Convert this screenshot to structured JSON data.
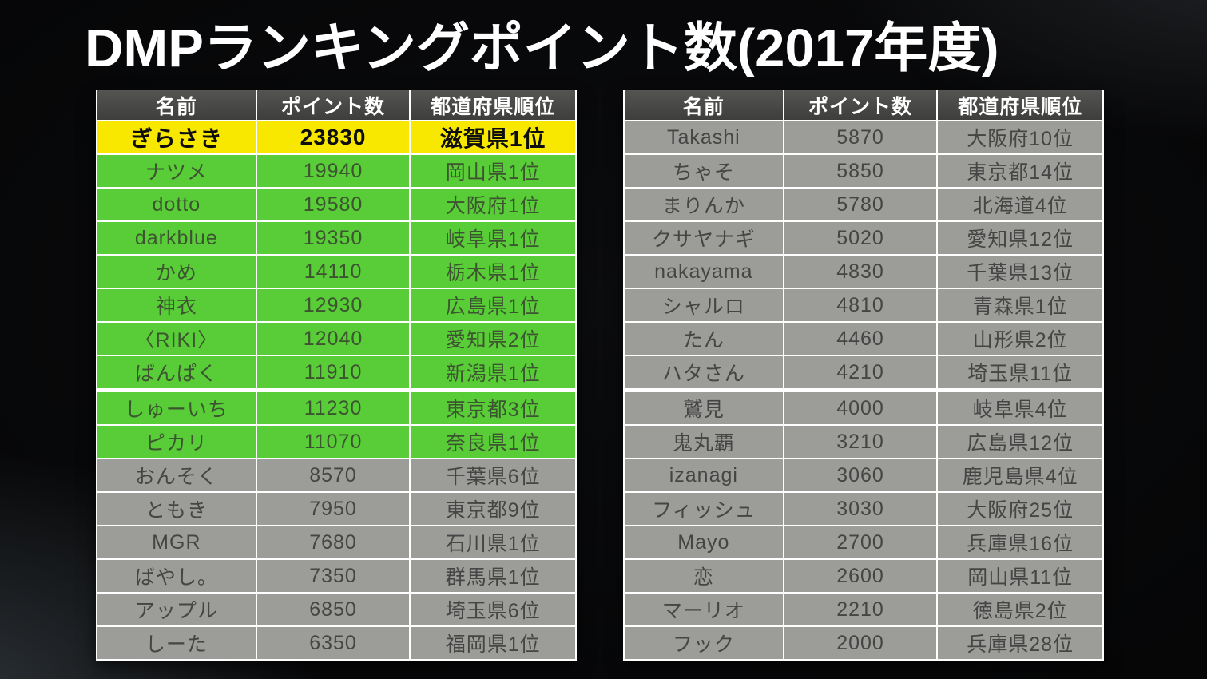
{
  "title": "DMPランキングポイント数(2017年度)",
  "colors": {
    "background": "#050506",
    "title_text": "#ffffff",
    "header_bg": "#474745",
    "grid_line": "#ffffff",
    "highlight_gold": "#f8e800",
    "highlight_green": "#58cd37",
    "row_gray": "#9c9c98"
  },
  "tables": {
    "columns": [
      "名前",
      "ポイント数",
      "都道府県順位"
    ],
    "left": {
      "thick_divider_before_row": 8,
      "rows": [
        {
          "name": "ぎらさき",
          "points": "23830",
          "pref": "滋賀県1位",
          "style": "gold"
        },
        {
          "name": "ナツメ",
          "points": "19940",
          "pref": "岡山県1位",
          "style": "green"
        },
        {
          "name": "dotto",
          "points": "19580",
          "pref": "大阪府1位",
          "style": "green"
        },
        {
          "name": "darkblue",
          "points": "19350",
          "pref": "岐阜県1位",
          "style": "green"
        },
        {
          "name": "かめ",
          "points": "14110",
          "pref": "栃木県1位",
          "style": "green"
        },
        {
          "name": "神衣",
          "points": "12930",
          "pref": "広島県1位",
          "style": "green"
        },
        {
          "name": "〈RIKI〉",
          "points": "12040",
          "pref": "愛知県2位",
          "style": "green"
        },
        {
          "name": "ばんぱく",
          "points": "11910",
          "pref": "新潟県1位",
          "style": "green"
        },
        {
          "name": "しゅーいち",
          "points": "11230",
          "pref": "東京都3位",
          "style": "green"
        },
        {
          "name": "ピカリ",
          "points": "11070",
          "pref": "奈良県1位",
          "style": "green"
        },
        {
          "name": "おんそく",
          "points": "8570",
          "pref": "千葉県6位",
          "style": "gray"
        },
        {
          "name": "ともき",
          "points": "7950",
          "pref": "東京都9位",
          "style": "gray"
        },
        {
          "name": "MGR",
          "points": "7680",
          "pref": "石川県1位",
          "style": "gray"
        },
        {
          "name": "ばやし。",
          "points": "7350",
          "pref": "群馬県1位",
          "style": "gray"
        },
        {
          "name": "アップル",
          "points": "6850",
          "pref": "埼玉県6位",
          "style": "gray"
        },
        {
          "name": "しーた",
          "points": "6350",
          "pref": "福岡県1位",
          "style": "gray"
        }
      ]
    },
    "right": {
      "thick_divider_before_row": 8,
      "rows": [
        {
          "name": "Takashi",
          "points": "5870",
          "pref": "大阪府10位",
          "style": "gray"
        },
        {
          "name": "ちゃそ",
          "points": "5850",
          "pref": "東京都14位",
          "style": "gray"
        },
        {
          "name": "まりんか",
          "points": "5780",
          "pref": "北海道4位",
          "style": "gray"
        },
        {
          "name": "クサヤナギ",
          "points": "5020",
          "pref": "愛知県12位",
          "style": "gray"
        },
        {
          "name": "nakayama",
          "points": "4830",
          "pref": "千葉県13位",
          "style": "gray"
        },
        {
          "name": "シャルロ",
          "points": "4810",
          "pref": "青森県1位",
          "style": "gray"
        },
        {
          "name": "たん",
          "points": "4460",
          "pref": "山形県2位",
          "style": "gray"
        },
        {
          "name": "ハタさん",
          "points": "4210",
          "pref": "埼玉県11位",
          "style": "gray"
        },
        {
          "name": "鷲見",
          "points": "4000",
          "pref": "岐阜県4位",
          "style": "gray"
        },
        {
          "name": "鬼丸覇",
          "points": "3210",
          "pref": "広島県12位",
          "style": "gray"
        },
        {
          "name": "izanagi",
          "points": "3060",
          "pref": "鹿児島県4位",
          "style": "gray"
        },
        {
          "name": "フィッシュ",
          "points": "3030",
          "pref": "大阪府25位",
          "style": "gray"
        },
        {
          "name": "Mayo",
          "points": "2700",
          "pref": "兵庫県16位",
          "style": "gray"
        },
        {
          "name": "恋",
          "points": "2600",
          "pref": "岡山県11位",
          "style": "gray"
        },
        {
          "name": "マーリオ",
          "points": "2210",
          "pref": "徳島県2位",
          "style": "gray"
        },
        {
          "name": "フック",
          "points": "2000",
          "pref": "兵庫県28位",
          "style": "gray"
        }
      ]
    }
  }
}
